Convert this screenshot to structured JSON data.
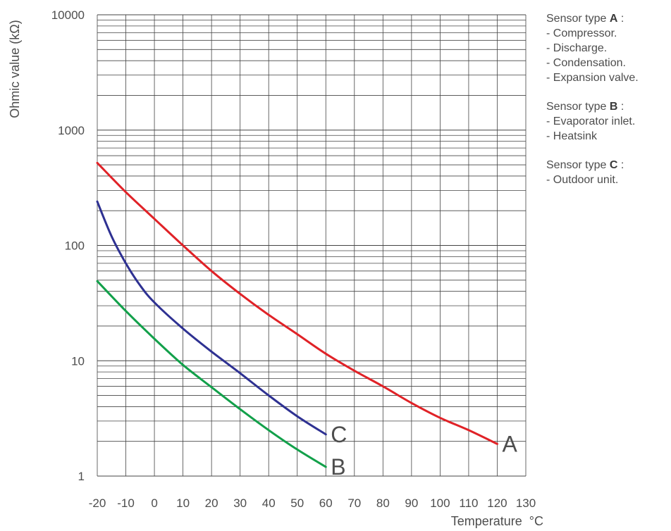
{
  "chart_data": {
    "type": "line",
    "title": "",
    "xlabel": "Temperature  °C",
    "ylabel": "Ohmic value (kΩ)",
    "xlim": [
      -20,
      130
    ],
    "ylim": [
      1,
      10000
    ],
    "yscale": "log",
    "grid": true,
    "xticks": [
      "-20",
      "-10",
      "0",
      "10",
      "20",
      "30",
      "40",
      "50",
      "60",
      "70",
      "80",
      "90",
      "100",
      "110",
      "120",
      "130"
    ],
    "yticks": [
      "1",
      "10",
      "100",
      "1000",
      "10000"
    ],
    "series": [
      {
        "name": "A",
        "color": "#e02227",
        "x": [
          -20,
          -10,
          0,
          10,
          20,
          30,
          40,
          50,
          60,
          70,
          80,
          90,
          100,
          110,
          120
        ],
        "y": [
          520,
          290,
          170,
          100,
          60,
          38,
          25,
          17,
          11.5,
          8.2,
          6.0,
          4.3,
          3.2,
          2.5,
          1.9
        ]
      },
      {
        "name": "B",
        "color": "#12a04a",
        "x": [
          -20,
          -10,
          0,
          10,
          20,
          30,
          40,
          50,
          60
        ],
        "y": [
          49,
          27,
          15.5,
          9.2,
          5.9,
          3.8,
          2.5,
          1.7,
          1.2
        ]
      },
      {
        "name": "C",
        "color": "#2e3192",
        "x": [
          -20,
          -15,
          -10,
          -5,
          0,
          10,
          20,
          30,
          40,
          50,
          60
        ],
        "y": [
          240,
          120,
          70,
          45,
          32,
          19,
          12,
          7.8,
          5.0,
          3.3,
          2.3
        ]
      }
    ]
  },
  "legend": [
    {
      "prefix": "Sensor type ",
      "type": "A",
      "suffix": " :",
      "items": [
        "- Compressor.",
        "- Discharge.",
        "- Condensation.",
        "- Expansion valve."
      ]
    },
    {
      "prefix": "Sensor type ",
      "type": "B",
      "suffix": " :",
      "items": [
        "- Evaporator inlet.",
        "- Heatsink"
      ]
    },
    {
      "prefix": "Sensor type ",
      "type": "C",
      "suffix": " :",
      "items": [
        "- Outdoor unit."
      ]
    }
  ]
}
